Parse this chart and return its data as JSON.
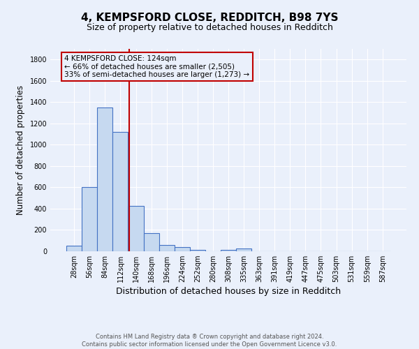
{
  "title1": "4, KEMPSFORD CLOSE, REDDITCH, B98 7YS",
  "title2": "Size of property relative to detached houses in Redditch",
  "xlabel": "Distribution of detached houses by size in Redditch",
  "ylabel": "Number of detached properties",
  "categories": [
    "28sqm",
    "56sqm",
    "84sqm",
    "112sqm",
    "140sqm",
    "168sqm",
    "196sqm",
    "224sqm",
    "252sqm",
    "280sqm",
    "308sqm",
    "335sqm",
    "363sqm",
    "391sqm",
    "419sqm",
    "447sqm",
    "475sqm",
    "503sqm",
    "531sqm",
    "559sqm",
    "587sqm"
  ],
  "values": [
    55,
    600,
    1350,
    1120,
    425,
    170,
    60,
    40,
    15,
    0,
    15,
    25,
    0,
    0,
    0,
    0,
    0,
    0,
    0,
    0,
    0
  ],
  "bar_color": "#c6d9f0",
  "bar_edge_color": "#4472c4",
  "bar_linewidth": 0.8,
  "vline_x": 3.57,
  "vline_color": "#c00000",
  "vline_linewidth": 1.5,
  "ylim": [
    0,
    1900
  ],
  "yticks": [
    0,
    200,
    400,
    600,
    800,
    1000,
    1200,
    1400,
    1600,
    1800
  ],
  "annotation_text": "4 KEMPSFORD CLOSE: 124sqm\n← 66% of detached houses are smaller (2,505)\n33% of semi-detached houses are larger (1,273) →",
  "annotation_box_color": "#c00000",
  "background_color": "#eaf0fb",
  "grid_color": "#ffffff",
  "footer": "Contains HM Land Registry data ® Crown copyright and database right 2024.\nContains public sector information licensed under the Open Government Licence v3.0.",
  "title1_fontsize": 11,
  "title2_fontsize": 9,
  "xlabel_fontsize": 9,
  "ylabel_fontsize": 8.5,
  "tick_fontsize": 7,
  "footer_fontsize": 6
}
